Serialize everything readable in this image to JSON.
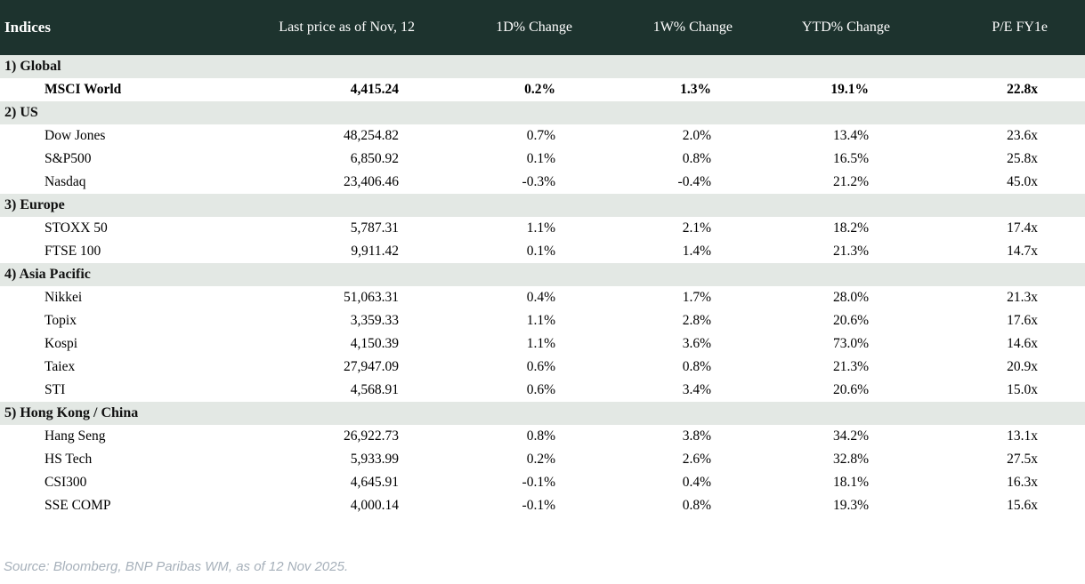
{
  "header": {
    "title": "Indices",
    "columns": [
      "Last price as of Nov, 12",
      "1D% Change",
      "1W% Change",
      "YTD% Change",
      "P/E FY1e"
    ]
  },
  "sections": [
    {
      "label": "1) Global",
      "rows": [
        {
          "name": "MSCI World",
          "last_price": "4,415.24",
          "d1": "0.2%",
          "w1": "1.3%",
          "ytd": "19.1%",
          "pe": "22.8x",
          "bold": true
        }
      ]
    },
    {
      "label": "2) US",
      "rows": [
        {
          "name": "Dow Jones",
          "last_price": "48,254.82",
          "d1": "0.7%",
          "w1": "2.0%",
          "ytd": "13.4%",
          "pe": "23.6x"
        },
        {
          "name": "S&P500",
          "last_price": "6,850.92",
          "d1": "0.1%",
          "w1": "0.8%",
          "ytd": "16.5%",
          "pe": "25.8x"
        },
        {
          "name": "Nasdaq",
          "last_price": "23,406.46",
          "d1": "-0.3%",
          "w1": "-0.4%",
          "ytd": "21.2%",
          "pe": "45.0x"
        }
      ]
    },
    {
      "label": "3) Europe",
      "rows": [
        {
          "name": "STOXX 50",
          "last_price": "5,787.31",
          "d1": "1.1%",
          "w1": "2.1%",
          "ytd": "18.2%",
          "pe": "17.4x"
        },
        {
          "name": "FTSE 100",
          "last_price": "9,911.42",
          "d1": "0.1%",
          "w1": "1.4%",
          "ytd": "21.3%",
          "pe": "14.7x"
        }
      ]
    },
    {
      "label": "4) Asia Pacific",
      "rows": [
        {
          "name": "Nikkei",
          "last_price": "51,063.31",
          "d1": "0.4%",
          "w1": "1.7%",
          "ytd": "28.0%",
          "pe": "21.3x"
        },
        {
          "name": "Topix",
          "last_price": "3,359.33",
          "d1": "1.1%",
          "w1": "2.8%",
          "ytd": "20.6%",
          "pe": "17.6x"
        },
        {
          "name": "Kospi",
          "last_price": "4,150.39",
          "d1": "1.1%",
          "w1": "3.6%",
          "ytd": "73.0%",
          "pe": "14.6x"
        },
        {
          "name": "Taiex",
          "last_price": "27,947.09",
          "d1": "0.6%",
          "w1": "0.8%",
          "ytd": "21.3%",
          "pe": "20.9x"
        },
        {
          "name": "STI",
          "last_price": "4,568.91",
          "d1": "0.6%",
          "w1": "3.4%",
          "ytd": "20.6%",
          "pe": "15.0x"
        }
      ]
    },
    {
      "label": "5) Hong Kong / China",
      "rows": [
        {
          "name": "Hang Seng",
          "last_price": "26,922.73",
          "d1": "0.8%",
          "w1": "3.8%",
          "ytd": "34.2%",
          "pe": "13.1x"
        },
        {
          "name": "HS Tech",
          "last_price": "5,933.99",
          "d1": "0.2%",
          "w1": "2.6%",
          "ytd": "32.8%",
          "pe": "27.5x"
        },
        {
          "name": "CSI300",
          "last_price": "4,645.91",
          "d1": "-0.1%",
          "w1": "0.4%",
          "ytd": "18.1%",
          "pe": "16.3x"
        },
        {
          "name": "SSE COMP",
          "last_price": "4,000.14",
          "d1": "-0.1%",
          "w1": "0.8%",
          "ytd": "19.3%",
          "pe": "15.6x"
        }
      ]
    }
  ],
  "footer": {
    "source": "Source: Bloomberg, BNP Paribas WM, as of 12 Nov 2025."
  },
  "colors": {
    "header_bg": "#1d332e",
    "section_bg": "#e3e8e4",
    "positive": "#008000",
    "negative": "#c00000",
    "source_text": "#a6b0ba"
  }
}
